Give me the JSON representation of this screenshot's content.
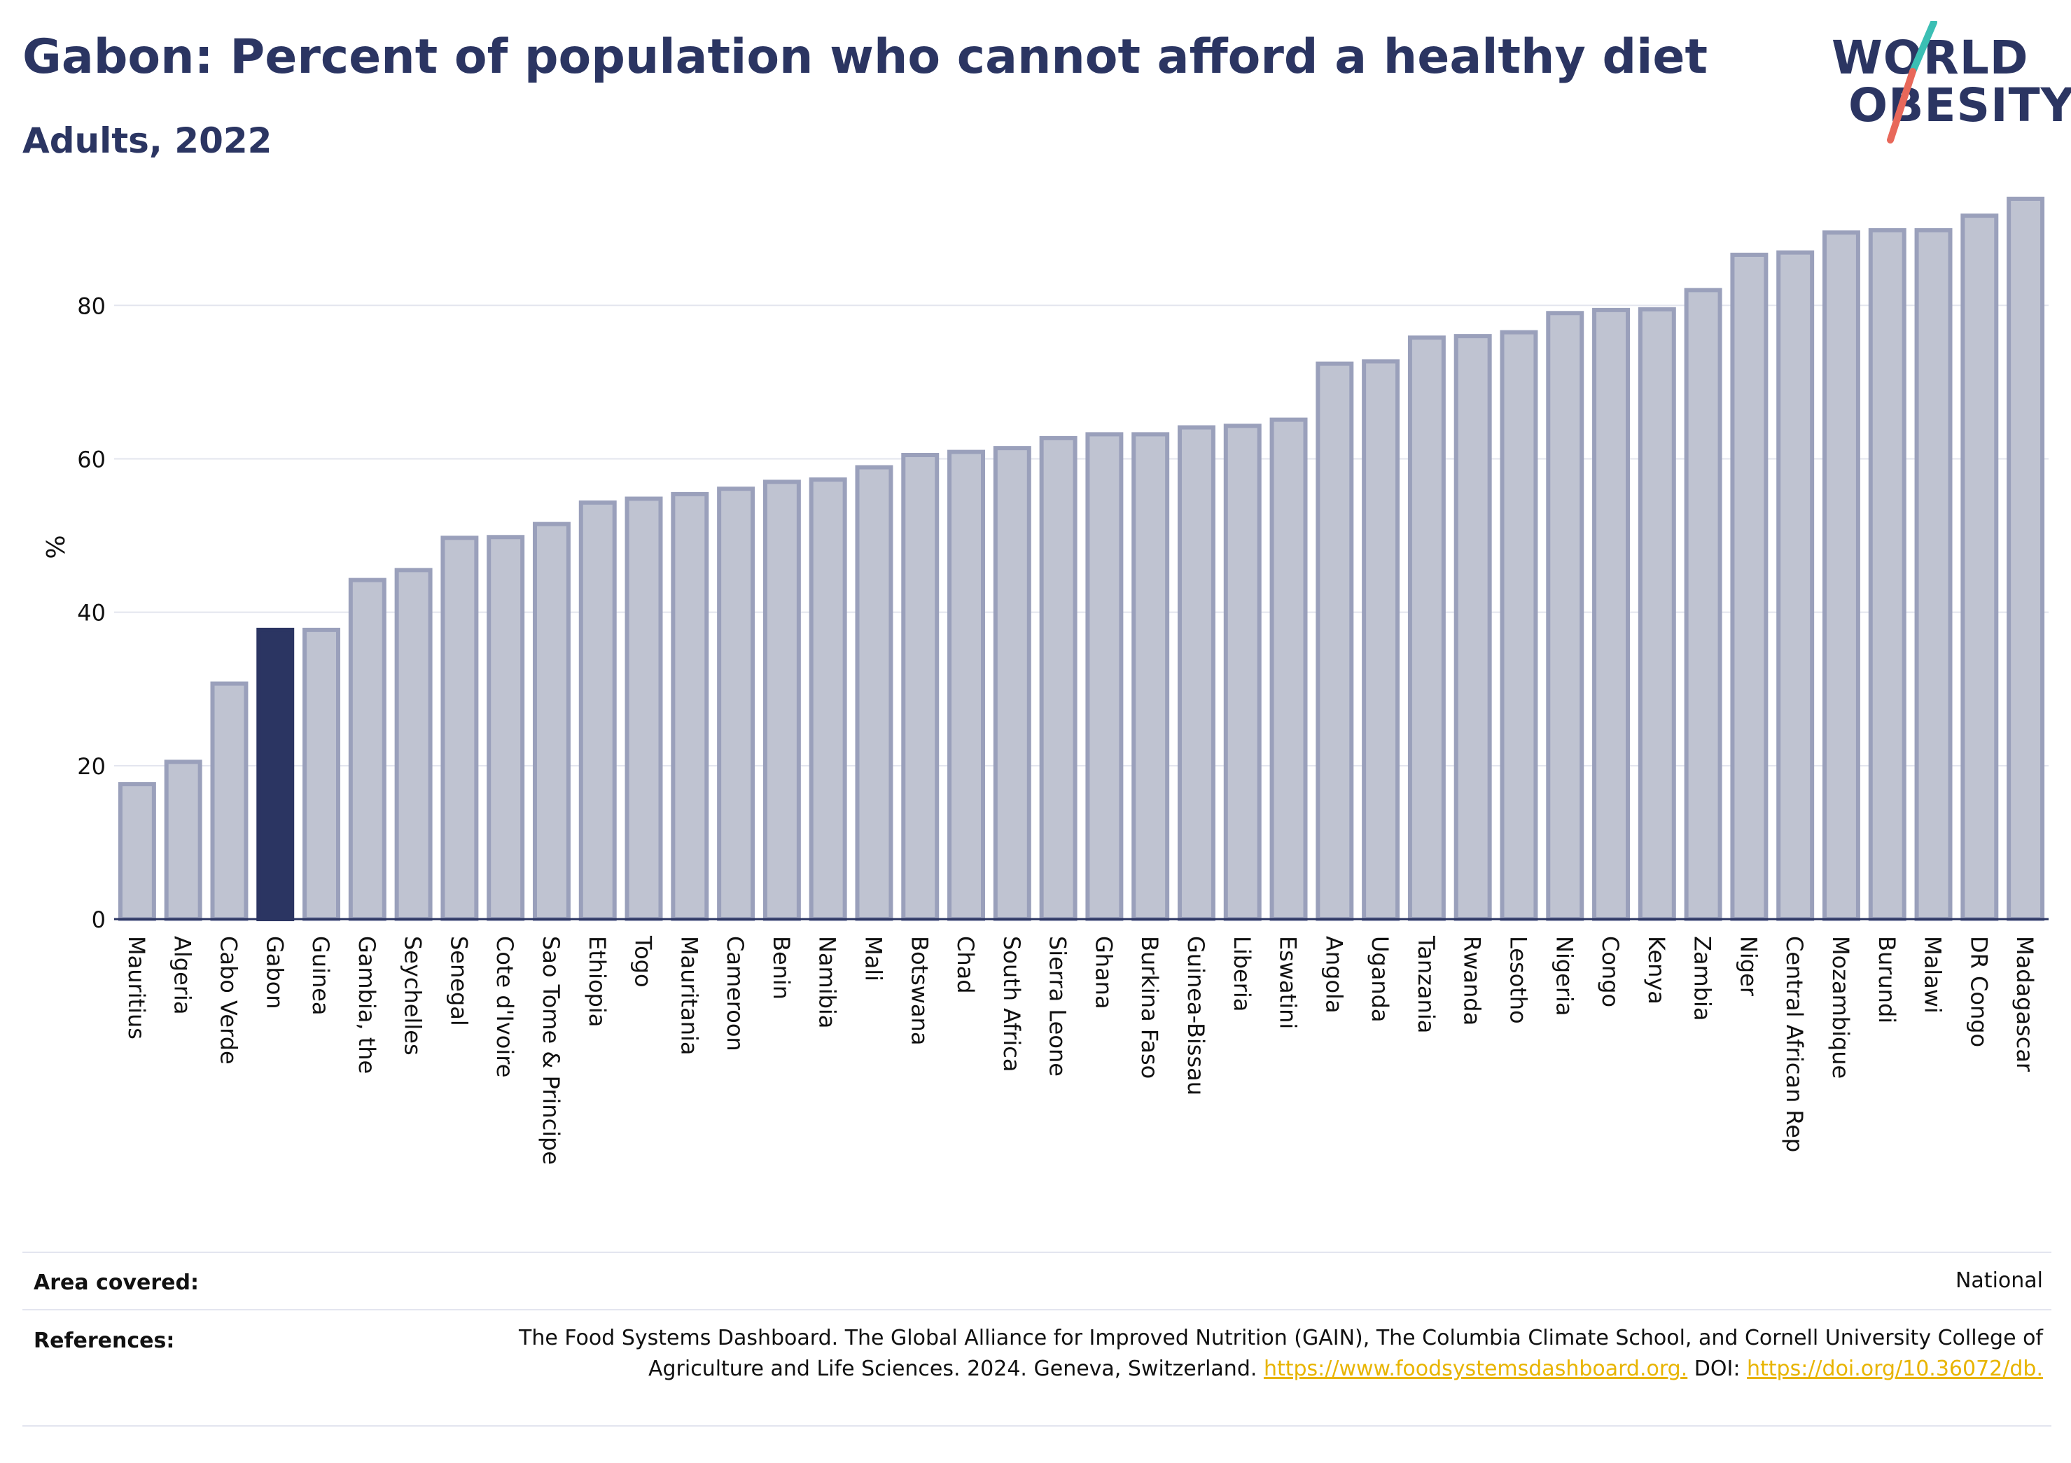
{
  "header": {
    "title": "Gabon: Percent of population who cannot afford a healthy diet",
    "subtitle": "Adults, 2022"
  },
  "logo": {
    "line1": "WORLD",
    "line2": "OBESITY",
    "slash_colors": [
      "#3bbfb4",
      "#e8685a"
    ]
  },
  "colors": {
    "bar_default": "#bfc3d1",
    "bar_border": "#9aa0bb",
    "bar_highlight": "#2b3562",
    "text": "#2b3562",
    "link": "#e8b400"
  },
  "chart_data": {
    "type": "bar",
    "highlight": "Gabon",
    "ylabel": "%",
    "ylim": [
      0,
      97
    ],
    "yticks": [
      0,
      20,
      40,
      60,
      80
    ],
    "grid": true,
    "categories": [
      "Mauritius",
      "Algeria",
      "Cabo Verde",
      "Gabon",
      "Guinea",
      "Gambia, the",
      "Seychelles",
      "Senegal",
      "Cote d'Ivoire",
      "Sao Tome & Principe",
      "Ethiopia",
      "Togo",
      "Mauritania",
      "Cameroon",
      "Benin",
      "Namibia",
      "Mali",
      "Botswana",
      "Chad",
      "South Africa",
      "Sierra Leone",
      "Ghana",
      "Burkina Faso",
      "Guinea-Bissau",
      "Liberia",
      "Eswatini",
      "Angola",
      "Uganda",
      "Tanzania",
      "Rwanda",
      "Lesotho",
      "Nigeria",
      "Congo",
      "Kenya",
      "Zambia",
      "Niger",
      "Central African Rep",
      "Mozambique",
      "Burundi",
      "Malawi",
      "DR Congo",
      "Madagascar"
    ],
    "values": [
      17.6,
      20.5,
      30.7,
      37.7,
      37.7,
      44.2,
      45.5,
      49.7,
      49.8,
      51.5,
      54.3,
      54.8,
      55.4,
      56.1,
      57.0,
      57.3,
      58.9,
      60.5,
      60.9,
      61.4,
      62.7,
      63.2,
      63.2,
      64.1,
      64.3,
      65.1,
      72.4,
      72.7,
      75.8,
      76.0,
      76.5,
      79.0,
      79.4,
      79.5,
      82.0,
      86.6,
      86.9,
      89.5,
      89.8,
      89.8,
      91.7,
      93.9
    ]
  },
  "footer": {
    "area_label": "Area covered:",
    "area_value": "National",
    "references_label": "References:",
    "references_text": "The Food Systems Dashboard. The Global Alliance for Improved Nutrition (GAIN), The Columbia Climate School, and Cornell University College of Agriculture and Life Sciences. 2024. Geneva, Switzerland. ",
    "references_link1": "https://www.foodsystemsdashboard.org.",
    "references_doi_label": " DOI: ",
    "references_link2": "https://doi.org/10.36072/db."
  }
}
